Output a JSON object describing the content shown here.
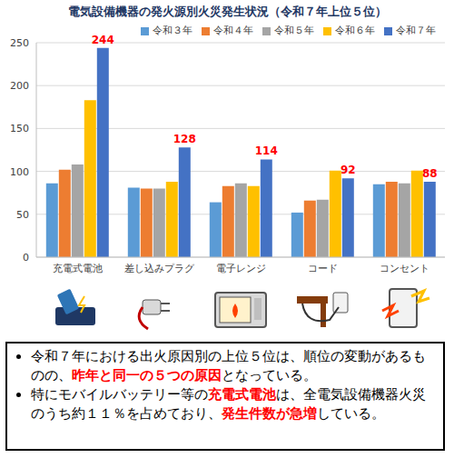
{
  "chart_data": {
    "type": "bar",
    "title": "電気設備機器の発火源別火災発生状況（令和７年上位５位）",
    "categories": [
      "充電式電池",
      "差し込みプラグ",
      "電子レンジ",
      "コード",
      "コンセント"
    ],
    "series": [
      {
        "name": "令和３年",
        "color": "#5B9BD5",
        "values": [
          86,
          81,
          64,
          52,
          85
        ]
      },
      {
        "name": "令和４年",
        "color": "#ED7D31",
        "values": [
          102,
          80,
          83,
          66,
          88
        ]
      },
      {
        "name": "令和５年",
        "color": "#A5A5A5",
        "values": [
          108,
          80,
          86,
          67,
          86
        ]
      },
      {
        "name": "令和６年",
        "color": "#FFC000",
        "values": [
          183,
          88,
          83,
          101,
          101
        ]
      },
      {
        "name": "令和７年",
        "color": "#4472C4",
        "values": [
          244,
          128,
          114,
          92,
          88
        ],
        "data_labels": true
      }
    ],
    "ylim": [
      0,
      250
    ],
    "yticks": [
      0,
      50,
      100,
      150,
      200,
      250
    ],
    "grid": true,
    "legend": "top-right"
  },
  "text_box": {
    "bullets": [
      [
        {
          "text": "令和７年における出火原因別の上位５位は、順位の変動があるものの、",
          "highlight": false
        },
        {
          "text": "昨年と同一の５つの原因",
          "highlight": true
        },
        {
          "text": "となっている。",
          "highlight": false
        }
      ],
      [
        {
          "text": "特にモバイルバッテリー等の",
          "highlight": false
        },
        {
          "text": "充電式電池",
          "highlight": true
        },
        {
          "text": "は、全電気設備機器火災のうち約１１％を占めており、",
          "highlight": false
        },
        {
          "text": "発生件数が急増",
          "highlight": true
        },
        {
          "text": "している。",
          "highlight": false
        }
      ]
    ]
  }
}
